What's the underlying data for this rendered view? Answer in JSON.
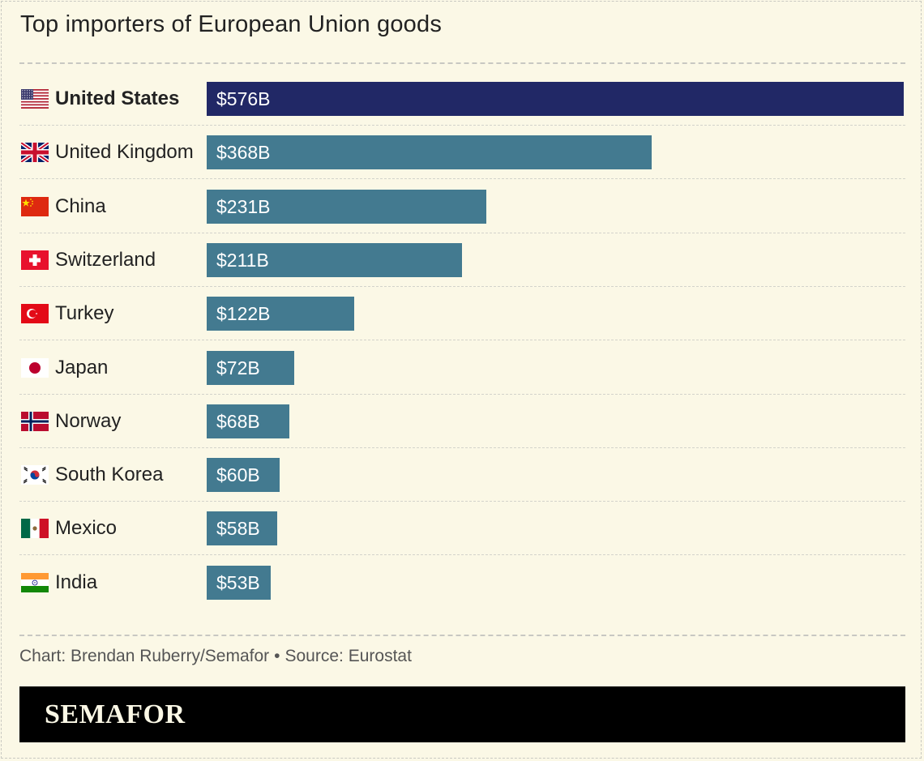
{
  "title": "Top importers of European Union goods",
  "chart_data": {
    "type": "bar",
    "orientation": "horizontal",
    "title": "Top importers of European Union goods",
    "unit": "USD billions",
    "xlim": [
      0,
      576
    ],
    "categories": [
      "United States",
      "United Kingdom",
      "China",
      "Switzerland",
      "Turkey",
      "Japan",
      "Norway",
      "South Korea",
      "Mexico",
      "India"
    ],
    "values": [
      576,
      368,
      231,
      211,
      122,
      72,
      68,
      60,
      58,
      53
    ],
    "value_labels": [
      "$576B",
      "$368B",
      "$231B",
      "$211B",
      "$122B",
      "$72B",
      "$68B",
      "$60B",
      "$58B",
      "$53B"
    ],
    "flags": [
      "us-flag-icon",
      "uk-flag-icon",
      "china-flag-icon",
      "switzerland-flag-icon",
      "turkey-flag-icon",
      "japan-flag-icon",
      "norway-flag-icon",
      "south-korea-flag-icon",
      "mexico-flag-icon",
      "india-flag-icon"
    ],
    "highlight_category": "United States",
    "colors": {
      "highlight": "#212866",
      "default": "#437a90"
    }
  },
  "footer": {
    "credit": "Chart: Brendan Ruberry/Semafor",
    "separator": "•",
    "source": "Source: Eurostat"
  },
  "brand": "SEMAFOR",
  "colors": {
    "background": "#fbf8e6",
    "brandbar": "#000000"
  }
}
